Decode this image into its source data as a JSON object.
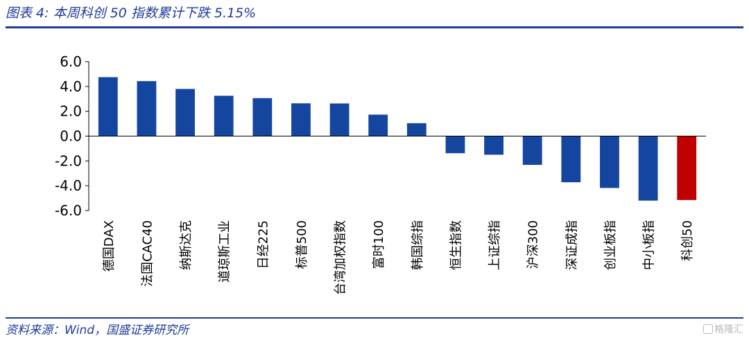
{
  "title": "图表 4:  本周科创 50 指数累计下跌 5.15%",
  "source": "资料来源：Wind，国盛证券研究所",
  "watermark": "格隆汇",
  "colors": {
    "accent": "#1f3b99",
    "bar": "#1446a0",
    "highlight": "#c00000"
  },
  "chart_data": {
    "type": "bar",
    "categories": [
      "德国DAX",
      "法国CAC40",
      "纳斯达克",
      "道琼斯工业",
      "日经225",
      "标普500",
      "台湾加权指数",
      "富时100",
      "韩国综指",
      "恒生指数",
      "上证综指",
      "沪深300",
      "深证成指",
      "创业板指",
      "中小板指",
      "科创50"
    ],
    "values": [
      4.75,
      4.43,
      3.8,
      3.25,
      3.06,
      2.64,
      2.63,
      1.73,
      1.04,
      -1.38,
      -1.5,
      -2.32,
      -3.72,
      -4.18,
      -5.2,
      -5.15
    ],
    "highlight_category": "科创50",
    "ylim": [
      -6,
      6
    ],
    "yticks": [
      "6.0",
      "4.0",
      "2.0",
      "0.0",
      "-2.0",
      "-4.0",
      "-6.0"
    ],
    "ytick_values": [
      6,
      4,
      2,
      0,
      -2,
      -4,
      -6
    ],
    "grid": false,
    "legend": "none",
    "xlabel": "",
    "ylabel": ""
  }
}
